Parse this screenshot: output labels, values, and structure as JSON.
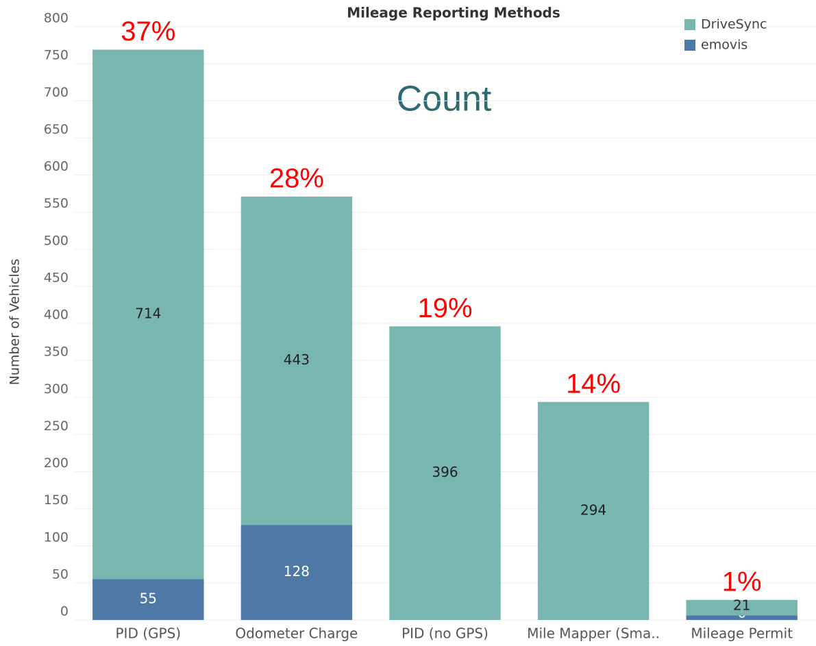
{
  "chart_data": {
    "type": "stacked_bar",
    "title": "Mileage Reporting Methods",
    "y_label": "Number of Vehicles",
    "categories": [
      "PID (GPS)",
      "Odometer Charge",
      "PID (no GPS)",
      "Mile Mapper (Sma..",
      "Mileage Permit"
    ],
    "series": [
      {
        "name": "emovis",
        "color": "#4e79a7",
        "values": [
          55,
          128,
          null,
          null,
          6
        ]
      },
      {
        "name": "DriveSync",
        "color": "#79b6b0",
        "values": [
          714,
          443,
          396,
          294,
          21
        ]
      }
    ],
    "annotations": [
      "37%",
      "28%",
      "19%",
      "14%",
      "1%"
    ],
    "center_annotation": "Count",
    "ylim": [
      0,
      800
    ],
    "yticks": [
      0,
      50,
      100,
      150,
      200,
      250,
      300,
      350,
      400,
      450,
      500,
      550,
      600,
      650,
      700,
      750,
      800
    ],
    "grid": true,
    "legend": "top-right"
  }
}
